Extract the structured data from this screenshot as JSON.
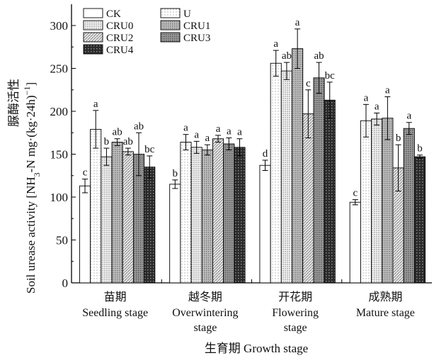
{
  "chart_data": {
    "type": "bar",
    "title": "",
    "ylabel_cn": "脲酶活性",
    "ylabel": "Soil urease activity [NH3-N mg·(kg·24h)−1]",
    "ylabel_main": "Soil urease activity [NH",
    "ylabel_sub": "3",
    "ylabel_mid": "-N mg·(kg·24h)",
    "ylabel_sup": "−1",
    "ylabel_end": "]",
    "xlabel": "生育期 Growth stage",
    "ylim": [
      0,
      320
    ],
    "yticks": [
      0,
      50,
      100,
      150,
      200,
      250,
      300
    ],
    "grid": false,
    "legend_position": "top-left",
    "categories": [
      {
        "cn": "苗期",
        "en": [
          "Seedling stage"
        ]
      },
      {
        "cn": "越冬期",
        "en": [
          "Overwintering",
          "stage"
        ]
      },
      {
        "cn": "开花期",
        "en": [
          "Flowering",
          "stage"
        ]
      },
      {
        "cn": "成熟期",
        "en": [
          "Mature stage"
        ]
      }
    ],
    "series": [
      {
        "name": "CK",
        "values": [
          113,
          115,
          137,
          94
        ],
        "errors": [
          8,
          5,
          6,
          3
        ],
        "labels": [
          "c",
          "b",
          "d",
          "c"
        ]
      },
      {
        "name": "U",
        "values": [
          179,
          164,
          256,
          189
        ],
        "errors": [
          22,
          9,
          15,
          19
        ],
        "labels": [
          "a",
          "a",
          "a",
          "a"
        ]
      },
      {
        "name": "CRU0",
        "values": [
          147,
          158,
          247,
          191
        ],
        "errors": [
          10,
          7,
          10,
          7
        ],
        "labels": [
          "b",
          "a",
          "ab",
          "a"
        ]
      },
      {
        "name": "CRU1",
        "values": [
          164,
          155,
          273,
          192
        ],
        "errors": [
          4,
          6,
          23,
          25
        ],
        "labels": [
          "ab",
          "a",
          "a",
          "a"
        ]
      },
      {
        "name": "CRU2",
        "values": [
          153,
          168,
          197,
          134
        ],
        "errors": [
          4,
          4,
          28,
          27
        ],
        "labels": [
          "ab",
          "a",
          "c",
          "b"
        ]
      },
      {
        "name": "CRU3",
        "values": [
          150,
          162,
          239,
          180
        ],
        "errors": [
          25,
          7,
          18,
          7
        ],
        "labels": [
          "ab",
          "a",
          "ab",
          "a"
        ]
      },
      {
        "name": "CRU4",
        "values": [
          135,
          158,
          213,
          147
        ],
        "errors": [
          13,
          10,
          21,
          2
        ],
        "labels": [
          "bc",
          "a",
          "bc",
          "b"
        ]
      }
    ]
  }
}
